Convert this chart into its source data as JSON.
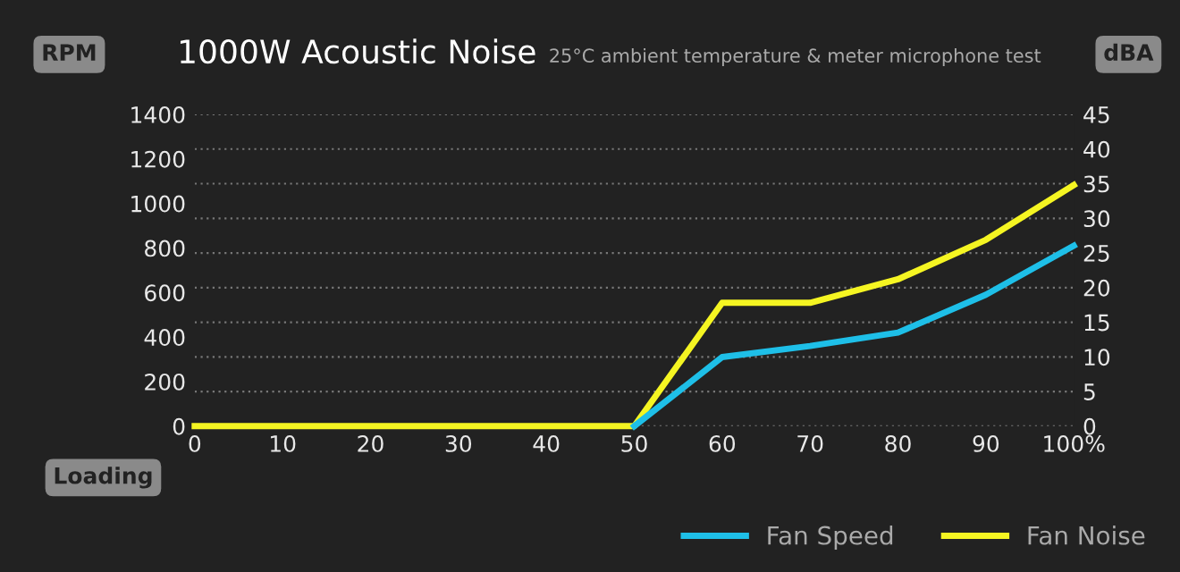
{
  "chart_data": {
    "type": "line",
    "title": "1000W Acoustic Noise",
    "subtitle": "25°C ambient temperature & meter microphone test",
    "xlabel": "Loading",
    "ylabel": "RPM",
    "y2label": "dBA",
    "x": [
      0,
      10,
      20,
      30,
      40,
      50,
      60,
      70,
      80,
      90,
      100
    ],
    "series": [
      {
        "name": "Fan Speed",
        "color": "#1ebfe8",
        "values": [
          null,
          null,
          null,
          null,
          null,
          0,
          310,
          360,
          420,
          590,
          810
        ]
      },
      {
        "name": "Fan Noise",
        "color": "#f5f522",
        "axis": "y2",
        "values": [
          0,
          0,
          0,
          0,
          0,
          0,
          17.8,
          17.8,
          21.2,
          26.9,
          34.8
        ]
      }
    ],
    "xlim": [
      0,
      100
    ],
    "xticks": [
      0,
      10,
      20,
      30,
      40,
      50,
      60,
      70,
      80,
      90,
      {
        "value": 100,
        "label": "100%"
      }
    ],
    "ylim": [
      0,
      1400
    ],
    "yticks": [
      0,
      200,
      400,
      600,
      800,
      1000,
      1200,
      1400
    ],
    "y2lim": [
      0,
      45
    ],
    "y2ticks": [
      0,
      5,
      10,
      15,
      20,
      25,
      30,
      35,
      40,
      45
    ],
    "grid": "y",
    "legend": "bottom right",
    "marker": "none",
    "line_style": "solid"
  }
}
